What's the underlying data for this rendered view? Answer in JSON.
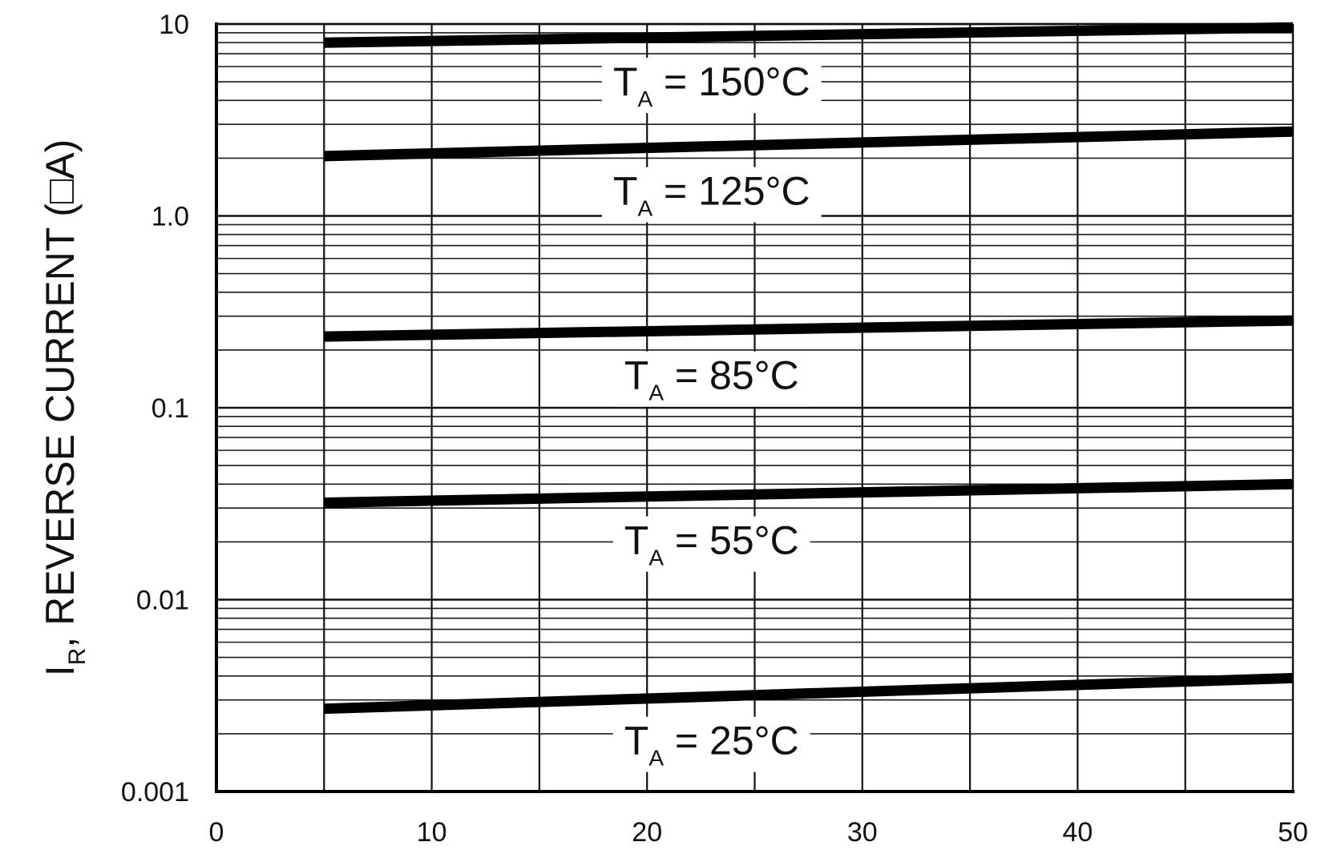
{
  "chart_data": {
    "type": "line",
    "title": "",
    "xlabel": "",
    "ylabel_symbol": "I",
    "ylabel_subscript": "R",
    "ylabel_text": ", REVERSE CURRENT (□A)",
    "y_scale": "log",
    "xlim": [
      0,
      50
    ],
    "ylim": [
      0.001,
      10
    ],
    "x_ticks": [
      0,
      10,
      20,
      30,
      40,
      50
    ],
    "x_tick_labels": [
      "0",
      "10",
      "20",
      "30",
      "40",
      "50"
    ],
    "y_ticks": [
      0.001,
      0.01,
      0.1,
      1,
      10
    ],
    "y_tick_labels": [
      "0.001",
      "0.01",
      "0.1",
      "1.0",
      "10"
    ],
    "grid": true,
    "series": [
      {
        "name": "T_A = 150°C",
        "label_main": "T",
        "label_sub": "A",
        "label_value": " = 150°C",
        "x": [
          5,
          50
        ],
        "y": [
          8.0,
          9.6
        ]
      },
      {
        "name": "T_A = 125°C",
        "label_main": "T",
        "label_sub": "A",
        "label_value": " = 125°C",
        "x": [
          5,
          50
        ],
        "y": [
          2.05,
          2.75
        ]
      },
      {
        "name": "T_A = 85°C",
        "label_main": "T",
        "label_sub": "A",
        "label_value": " = 85°C",
        "x": [
          5,
          50
        ],
        "y": [
          0.235,
          0.285
        ]
      },
      {
        "name": "T_A = 55°C",
        "label_main": "T",
        "label_sub": "A",
        "label_value": " = 55°C",
        "x": [
          5,
          50
        ],
        "y": [
          0.032,
          0.04
        ]
      },
      {
        "name": "T_A = 25°C",
        "label_main": "T",
        "label_sub": "A",
        "label_value": " = 25°C",
        "x": [
          5,
          50
        ],
        "y": [
          0.0027,
          0.0039
        ]
      }
    ]
  }
}
